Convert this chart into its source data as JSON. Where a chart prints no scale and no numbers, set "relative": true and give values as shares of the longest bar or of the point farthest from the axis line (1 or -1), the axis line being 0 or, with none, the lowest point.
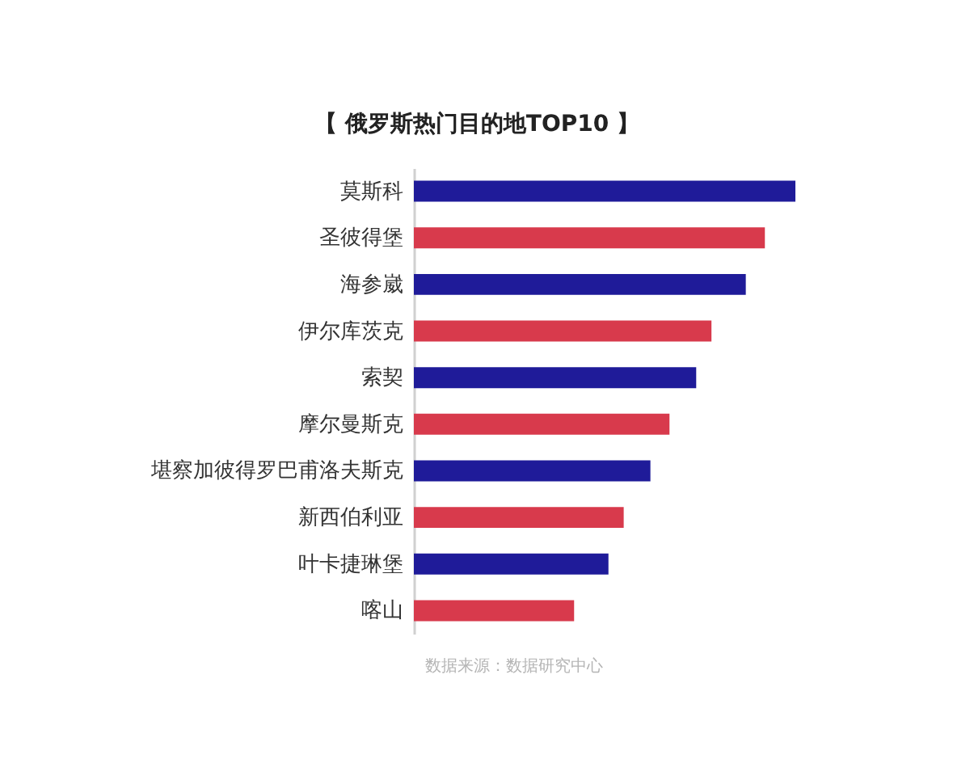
{
  "chart_data": {
    "type": "bar",
    "orientation": "horizontal",
    "relative": true,
    "title": "【 俄罗斯热门目的地TOP10 】",
    "categories": [
      "莫斯科",
      "圣彼得堡",
      "海参崴",
      "伊尔库茨克",
      "索契",
      "摩尔曼斯克",
      "堪察加彼得罗巴甫洛夫斯克",
      "新西伯利亚",
      "叶卡捷琳堡",
      "喀山"
    ],
    "values": [
      1,
      0.92,
      0.87,
      0.78,
      0.74,
      0.67,
      0.62,
      0.55,
      0.51,
      0.42
    ],
    "colors": [
      "#1f1b99",
      "#d83a4c",
      "#1f1b99",
      "#d83a4c",
      "#1f1b99",
      "#d83a4c",
      "#1f1b99",
      "#d83a4c",
      "#1f1b99",
      "#d83a4c"
    ],
    "annotations": [
      "数据来源：数据研究中心"
    ]
  }
}
